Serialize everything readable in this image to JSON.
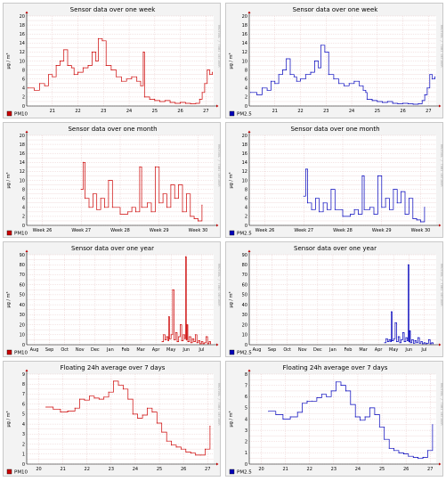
{
  "chart_data": [
    {
      "type": "line",
      "title": "Sensor data over one week",
      "ylabel": "µg / m³",
      "side_label": "RRDTOOL / TOBI OETIKER",
      "legend": "PM10",
      "color": "#cc0000",
      "ylim": [
        0,
        20
      ],
      "yticks": [
        0,
        2,
        4,
        6,
        8,
        10,
        12,
        14,
        16,
        18,
        20
      ],
      "xlim": [
        20,
        27.3
      ],
      "xticks": [
        {
          "v": 21,
          "l": "21"
        },
        {
          "v": 22,
          "l": "22"
        },
        {
          "v": 23,
          "l": "23"
        },
        {
          "v": 24,
          "l": "24"
        },
        {
          "v": 25,
          "l": "25"
        },
        {
          "v": 26,
          "l": "26"
        },
        {
          "v": 27,
          "l": "27"
        }
      ],
      "x": [
        20.05,
        20.3,
        20.5,
        20.7,
        20.85,
        21.0,
        21.15,
        21.3,
        21.45,
        21.6,
        21.75,
        21.85,
        22.0,
        22.2,
        22.4,
        22.55,
        22.7,
        22.8,
        22.95,
        23.1,
        23.3,
        23.5,
        23.7,
        23.9,
        24.1,
        24.3,
        24.45,
        24.55,
        24.6,
        24.8,
        25.0,
        25.2,
        25.4,
        25.6,
        25.8,
        26.0,
        26.2,
        26.4,
        26.6,
        26.75,
        26.85,
        26.95,
        27.05,
        27.15,
        27.25
      ],
      "values": [
        4,
        3.5,
        5,
        4.5,
        7,
        6.5,
        9,
        10,
        12.5,
        9,
        8.5,
        7,
        7.5,
        8.5,
        9,
        12,
        10,
        15,
        14.5,
        9,
        8,
        6.5,
        5.5,
        6,
        6.5,
        5.5,
        4.5,
        12,
        2,
        1.5,
        1.2,
        1,
        1.2,
        0.8,
        0.6,
        0.8,
        0.6,
        0.5,
        0.6,
        1.5,
        3,
        5,
        8,
        7,
        7.5
      ]
    },
    {
      "type": "line",
      "title": "Sensor data over one week",
      "ylabel": "µg / m³",
      "side_label": "RRDTOOL / TOBI OETIKER",
      "legend": "PM2.5",
      "color": "#0000bb",
      "ylim": [
        0,
        20
      ],
      "yticks": [
        0,
        2,
        4,
        6,
        8,
        10,
        12,
        14,
        16,
        18,
        20
      ],
      "xlim": [
        20,
        27.3
      ],
      "xticks": [
        {
          "v": 21,
          "l": "21"
        },
        {
          "v": 22,
          "l": "22"
        },
        {
          "v": 23,
          "l": "23"
        },
        {
          "v": 24,
          "l": "24"
        },
        {
          "v": 25,
          "l": "25"
        },
        {
          "v": 26,
          "l": "26"
        },
        {
          "v": 27,
          "l": "27"
        }
      ],
      "x": [
        20.05,
        20.3,
        20.5,
        20.7,
        20.85,
        21.0,
        21.15,
        21.3,
        21.45,
        21.6,
        21.75,
        21.85,
        22.0,
        22.2,
        22.4,
        22.55,
        22.7,
        22.8,
        22.95,
        23.1,
        23.3,
        23.5,
        23.7,
        23.9,
        24.1,
        24.3,
        24.45,
        24.55,
        24.6,
        24.8,
        25.0,
        25.2,
        25.4,
        25.6,
        25.8,
        26.0,
        26.2,
        26.4,
        26.6,
        26.75,
        26.85,
        26.95,
        27.05,
        27.15,
        27.25
      ],
      "values": [
        3,
        2.5,
        4,
        3.5,
        5.5,
        5,
        7,
        8,
        10.5,
        7,
        6.5,
        5.5,
        6,
        7,
        7.5,
        10,
        8.5,
        13.5,
        12,
        7,
        6,
        5,
        4.5,
        5,
        5.5,
        4.5,
        3.5,
        3,
        1.5,
        1.2,
        1,
        0.8,
        1,
        0.6,
        0.5,
        0.6,
        0.5,
        0.4,
        0.5,
        1.2,
        2.5,
        4,
        7,
        6,
        6.5
      ]
    },
    {
      "type": "line",
      "title": "Sensor data over one month",
      "ylabel": "µg / m³",
      "side_label": "RRDTOOL / TOBI OETIKER",
      "legend": "PM10",
      "color": "#cc0000",
      "ylim": [
        0,
        20
      ],
      "yticks": [
        0,
        2,
        4,
        6,
        8,
        10,
        12,
        14,
        16,
        18,
        20
      ],
      "xlim": [
        25.6,
        30.4
      ],
      "xticks": [
        {
          "v": 26,
          "l": "Week 26"
        },
        {
          "v": 27,
          "l": "Week 27"
        },
        {
          "v": 28,
          "l": "Week 28"
        },
        {
          "v": 29,
          "l": "Week 29"
        },
        {
          "v": 30,
          "l": "Week 30"
        }
      ],
      "x": [
        27.0,
        27.05,
        27.1,
        27.2,
        27.3,
        27.4,
        27.5,
        27.6,
        27.7,
        27.8,
        28.0,
        28.2,
        28.3,
        28.4,
        28.5,
        28.55,
        28.7,
        28.8,
        28.9,
        29.0,
        29.1,
        29.2,
        29.3,
        29.4,
        29.5,
        29.6,
        29.7,
        29.8,
        29.9,
        30.0,
        30.1
      ],
      "values": [
        8,
        14,
        6,
        4,
        7,
        3.5,
        6,
        4,
        10,
        4,
        2.5,
        3,
        4,
        3,
        13,
        4,
        5,
        3,
        13,
        5,
        7,
        4,
        9,
        6,
        9,
        3,
        7,
        2,
        1.5,
        1,
        4.5
      ]
    },
    {
      "type": "line",
      "title": "Sensor data over one month",
      "ylabel": "µg / m³",
      "side_label": "RRDTOOL / TOBI OETIKER",
      "legend": "PM2.5",
      "color": "#0000bb",
      "ylim": [
        0,
        20
      ],
      "yticks": [
        0,
        2,
        4,
        6,
        8,
        10,
        12,
        14,
        16,
        18,
        20
      ],
      "xlim": [
        25.6,
        30.4
      ],
      "xticks": [
        {
          "v": 26,
          "l": "Week 26"
        },
        {
          "v": 27,
          "l": "Week 27"
        },
        {
          "v": 28,
          "l": "Week 28"
        },
        {
          "v": 29,
          "l": "Week 29"
        },
        {
          "v": 30,
          "l": "Week 30"
        }
      ],
      "x": [
        27.0,
        27.05,
        27.1,
        27.2,
        27.3,
        27.4,
        27.5,
        27.6,
        27.7,
        27.8,
        28.0,
        28.2,
        28.3,
        28.4,
        28.5,
        28.55,
        28.7,
        28.8,
        28.9,
        29.0,
        29.1,
        29.2,
        29.3,
        29.4,
        29.5,
        29.6,
        29.7,
        29.8,
        29.9,
        30.0,
        30.1
      ],
      "values": [
        6.5,
        12.5,
        5,
        3.5,
        6,
        3,
        5,
        3.5,
        8,
        3.5,
        2,
        2.5,
        3.5,
        2.5,
        11,
        3.5,
        4,
        2.5,
        11,
        4,
        6,
        3.5,
        8,
        5,
        7.5,
        2.5,
        6,
        1.5,
        1.2,
        0.8,
        4
      ]
    },
    {
      "type": "line",
      "title": "Sensor data over one year",
      "ylabel": "µg / m³",
      "side_label": "RRDTOOL / TOBI OETIKER",
      "legend": "PM10",
      "color": "#cc0000",
      "ylim": [
        0,
        90
      ],
      "yticks": [
        0,
        10,
        20,
        30,
        40,
        50,
        60,
        70,
        80,
        90
      ],
      "xlim": [
        0,
        12.3
      ],
      "xticks": [
        {
          "v": 0.5,
          "l": "Aug"
        },
        {
          "v": 1.5,
          "l": "Sep"
        },
        {
          "v": 2.5,
          "l": "Oct"
        },
        {
          "v": 3.5,
          "l": "Nov"
        },
        {
          "v": 4.5,
          "l": "Dec"
        },
        {
          "v": 5.5,
          "l": "Jan"
        },
        {
          "v": 6.5,
          "l": "Feb"
        },
        {
          "v": 7.5,
          "l": "Mar"
        },
        {
          "v": 8.5,
          "l": "Apr"
        },
        {
          "v": 9.5,
          "l": "May"
        },
        {
          "v": 10.5,
          "l": "Jun"
        },
        {
          "v": 11.5,
          "l": "Jul"
        }
      ],
      "x": [
        8.9,
        9.0,
        9.1,
        9.2,
        9.3,
        9.35,
        9.4,
        9.5,
        9.6,
        9.7,
        9.8,
        9.9,
        10.0,
        10.1,
        10.2,
        10.3,
        10.4,
        10.45,
        10.5,
        10.55,
        10.6,
        10.7,
        10.8,
        10.9,
        11.0,
        11.1,
        11.2,
        11.3,
        11.4,
        11.5,
        11.6,
        11.7,
        11.8,
        11.9,
        12.0,
        12.1
      ],
      "values": [
        3,
        10,
        5,
        8,
        4,
        28,
        6,
        10,
        55,
        5,
        12,
        3,
        8,
        20,
        4,
        10,
        6,
        88,
        5,
        20,
        3,
        8,
        2,
        6,
        3,
        10,
        2,
        4,
        1,
        3,
        1,
        2,
        8,
        1,
        3,
        1
      ]
    },
    {
      "type": "line",
      "title": "Sensor data over one year",
      "ylabel": "µg / m³",
      "side_label": "RRDTOOL / TOBI OETIKER",
      "legend": "PM2.5",
      "color": "#0000bb",
      "ylim": [
        0,
        90
      ],
      "yticks": [
        0,
        10,
        20,
        30,
        40,
        50,
        60,
        70,
        80,
        90
      ],
      "xlim": [
        0,
        12.3
      ],
      "xticks": [
        {
          "v": 0.5,
          "l": "Aug"
        },
        {
          "v": 1.5,
          "l": "Sep"
        },
        {
          "v": 2.5,
          "l": "Oct"
        },
        {
          "v": 3.5,
          "l": "Nov"
        },
        {
          "v": 4.5,
          "l": "Dec"
        },
        {
          "v": 5.5,
          "l": "Jan"
        },
        {
          "v": 6.5,
          "l": "Feb"
        },
        {
          "v": 7.5,
          "l": "Mar"
        },
        {
          "v": 8.5,
          "l": "Apr"
        },
        {
          "v": 9.5,
          "l": "May"
        },
        {
          "v": 10.5,
          "l": "Jun"
        },
        {
          "v": 11.5,
          "l": "Jul"
        }
      ],
      "x": [
        8.9,
        9.0,
        9.1,
        9.2,
        9.3,
        9.35,
        9.4,
        9.5,
        9.6,
        9.7,
        9.8,
        9.9,
        10.0,
        10.1,
        10.2,
        10.3,
        10.4,
        10.45,
        10.5,
        10.55,
        10.6,
        10.7,
        10.8,
        10.9,
        11.0,
        11.1,
        11.2,
        11.3,
        11.4,
        11.5,
        11.6,
        11.7,
        11.8,
        11.9,
        12.0,
        12.1
      ],
      "values": [
        2,
        6,
        3,
        5,
        3,
        33,
        4,
        6,
        22,
        3,
        8,
        2,
        5,
        12,
        3,
        7,
        4,
        80,
        3,
        14,
        2,
        5,
        1.5,
        4,
        2,
        7,
        1.5,
        3,
        1,
        2,
        1,
        1.5,
        5,
        1,
        2,
        1
      ]
    },
    {
      "type": "line",
      "title": "Floating 24h average over 7 days",
      "ylabel": "µg / m³",
      "side_label": "RRDTOOL / TOBI OETIKER",
      "legend": "PM10",
      "color": "#cc0000",
      "ylim": [
        0,
        9
      ],
      "yticks": [
        0,
        1,
        2,
        3,
        4,
        5,
        6,
        7,
        8,
        9
      ],
      "xlim": [
        19.5,
        27.25
      ],
      "xticks": [
        {
          "v": 20,
          "l": "20"
        },
        {
          "v": 21,
          "l": "21"
        },
        {
          "v": 22,
          "l": "22"
        },
        {
          "v": 23,
          "l": "23"
        },
        {
          "v": 24,
          "l": "24"
        },
        {
          "v": 25,
          "l": "25"
        },
        {
          "v": 26,
          "l": "26"
        },
        {
          "v": 27,
          "l": "27"
        }
      ],
      "x": [
        20.3,
        20.6,
        20.9,
        21.2,
        21.5,
        21.7,
        21.9,
        22.1,
        22.3,
        22.5,
        22.7,
        22.9,
        23.1,
        23.3,
        23.5,
        23.7,
        23.9,
        24.1,
        24.3,
        24.5,
        24.7,
        24.9,
        25.1,
        25.3,
        25.5,
        25.7,
        25.9,
        26.1,
        26.3,
        26.5,
        26.7,
        26.9,
        27.1
      ],
      "values": [
        5.7,
        5.5,
        5.2,
        5.3,
        5.6,
        6.5,
        6.4,
        6.8,
        6.6,
        6.5,
        6.7,
        7.2,
        8.3,
        7.9,
        7.5,
        6.5,
        5.0,
        4.6,
        4.9,
        5.6,
        5.2,
        4.1,
        3.2,
        2.3,
        1.9,
        1.7,
        1.5,
        1.2,
        1.1,
        0.9,
        0.9,
        1.5,
        3.8
      ]
    },
    {
      "type": "line",
      "title": "Floating 24h average over 7 days",
      "ylabel": "µg / m³",
      "side_label": "RRDTOOL / TOBI OETIKER",
      "legend": "PM2.5",
      "color": "#0000bb",
      "ylim": [
        0,
        8
      ],
      "yticks": [
        0,
        1,
        2,
        3,
        4,
        5,
        6,
        7,
        8
      ],
      "xlim": [
        19.5,
        27.25
      ],
      "xticks": [
        {
          "v": 20,
          "l": "20"
        },
        {
          "v": 21,
          "l": "21"
        },
        {
          "v": 22,
          "l": "22"
        },
        {
          "v": 23,
          "l": "23"
        },
        {
          "v": 24,
          "l": "24"
        },
        {
          "v": 25,
          "l": "25"
        },
        {
          "v": 26,
          "l": "26"
        },
        {
          "v": 27,
          "l": "27"
        }
      ],
      "x": [
        20.3,
        20.6,
        20.9,
        21.2,
        21.5,
        21.7,
        21.9,
        22.1,
        22.3,
        22.5,
        22.7,
        22.9,
        23.1,
        23.3,
        23.5,
        23.7,
        23.9,
        24.1,
        24.3,
        24.5,
        24.7,
        24.9,
        25.1,
        25.3,
        25.5,
        25.7,
        25.9,
        26.1,
        26.3,
        26.5,
        26.7,
        26.9,
        27.1
      ],
      "values": [
        4.7,
        4.4,
        4.0,
        4.2,
        4.6,
        5.4,
        5.6,
        5.6,
        5.9,
        6.2,
        6.0,
        6.5,
        7.3,
        7.0,
        6.5,
        5.3,
        4.2,
        3.9,
        4.2,
        5.0,
        4.4,
        3.3,
        2.2,
        1.4,
        1.2,
        1.0,
        0.9,
        0.7,
        0.6,
        0.5,
        0.6,
        1.2,
        3.5
      ]
    }
  ]
}
